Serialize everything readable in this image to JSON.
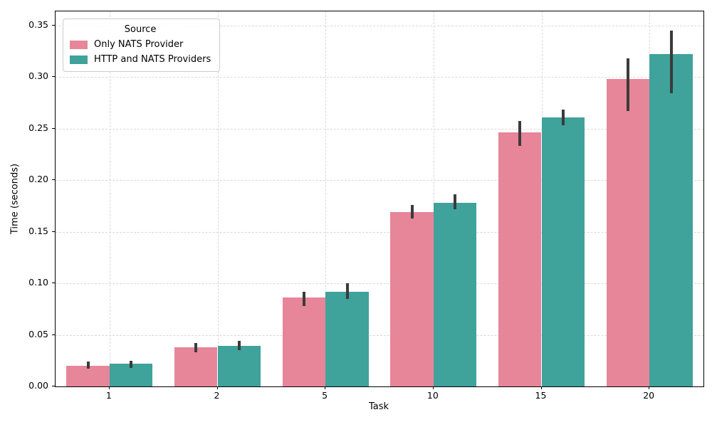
{
  "chart_data": {
    "type": "bar",
    "title": "",
    "xlabel": "Task",
    "ylabel": "Time (seconds)",
    "categories": [
      "1",
      "2",
      "5",
      "10",
      "15",
      "20"
    ],
    "series": [
      {
        "name": "Only NATS Provider",
        "color": "#e78599",
        "values": [
          0.02,
          0.038,
          0.086,
          0.169,
          0.246,
          0.298
        ],
        "err_low": [
          0.017,
          0.033,
          0.078,
          0.163,
          0.233,
          0.267
        ],
        "err_high": [
          0.024,
          0.042,
          0.092,
          0.176,
          0.257,
          0.318
        ]
      },
      {
        "name": "HTTP and NATS Providers",
        "color": "#3fa29b",
        "values": [
          0.022,
          0.039,
          0.092,
          0.178,
          0.261,
          0.322
        ],
        "err_low": [
          0.018,
          0.035,
          0.085,
          0.172,
          0.253,
          0.284
        ],
        "err_high": [
          0.025,
          0.044,
          0.1,
          0.186,
          0.268,
          0.345
        ]
      }
    ],
    "legend": {
      "title": "Source",
      "position": "upper-left"
    },
    "ylim": [
      0,
      0.3635
    ],
    "yticks": [
      0.0,
      0.05,
      0.1,
      0.15,
      0.2,
      0.25,
      0.3,
      0.35
    ],
    "grid": {
      "show": true,
      "style": "dashed",
      "axes": "both"
    },
    "colors": {
      "error_bar": "#3b3b3b",
      "grid": "#d9d9d9",
      "spine": "#000000",
      "text": "#000000"
    }
  }
}
